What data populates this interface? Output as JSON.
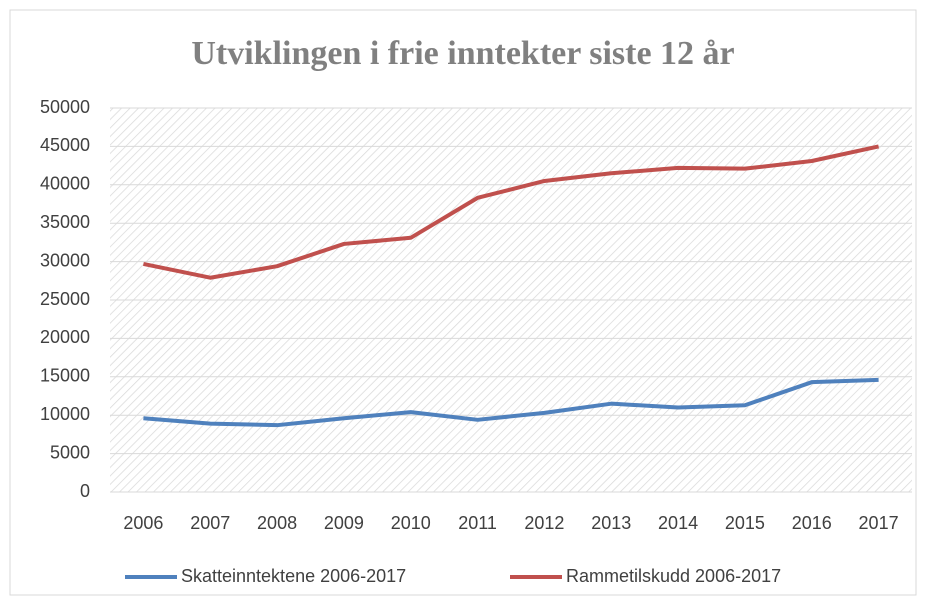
{
  "chart_data": {
    "type": "line",
    "title": "Utviklingen i frie inntekter siste 12 år",
    "categories": [
      "2006",
      "2007",
      "2008",
      "2009",
      "2010",
      "2011",
      "2012",
      "2013",
      "2014",
      "2015",
      "2016",
      "2017"
    ],
    "series": [
      {
        "name": "Skatteinntektene 2006-2017",
        "color": "#4f81bd",
        "values": [
          9600,
          8900,
          8700,
          9600,
          10400,
          9400,
          10300,
          11500,
          11000,
          11300,
          14300,
          14600
        ]
      },
      {
        "name": "Rammetilskudd 2006-2017",
        "color": "#c0504d",
        "values": [
          29700,
          27900,
          29400,
          32300,
          33100,
          38300,
          40500,
          41500,
          42200,
          42100,
          43100,
          45000
        ]
      }
    ],
    "ylim": [
      0,
      50000
    ],
    "yticks": [
      0,
      5000,
      10000,
      15000,
      20000,
      25000,
      30000,
      35000,
      40000,
      45000,
      50000
    ],
    "grid": true,
    "legend": "bottom"
  }
}
